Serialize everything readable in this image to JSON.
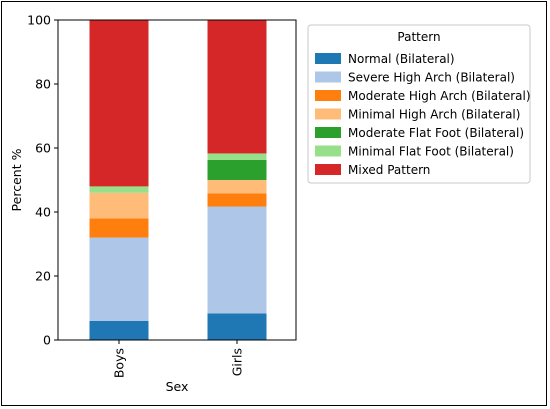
{
  "chart_data": {
    "type": "bar",
    "stacked": true,
    "categories": [
      "Boys",
      "Girls"
    ],
    "xlabel": "Sex",
    "ylabel": "Percent %",
    "ylim": [
      0,
      100
    ],
    "yticks": [
      0,
      20,
      40,
      60,
      80,
      100
    ],
    "grid": false,
    "legend": {
      "title": "Pattern",
      "placement": "upper right, outside plot"
    },
    "series": [
      {
        "name": "Normal (Bilateral)",
        "color": "#1f77b4",
        "values": [
          6,
          8.3
        ]
      },
      {
        "name": "Severe High Arch (Bilateral)",
        "color": "#aec7e8",
        "values": [
          26,
          33.4
        ]
      },
      {
        "name": "Moderate High Arch (Bilateral)",
        "color": "#ff7f0e",
        "values": [
          6,
          4.1
        ]
      },
      {
        "name": "Minimal High Arch (Bilateral)",
        "color": "#ffbb78",
        "values": [
          8,
          4.2
        ]
      },
      {
        "name": "Moderate Flat Foot (Bilateral)",
        "color": "#2ca02c",
        "values": [
          0,
          6.3
        ]
      },
      {
        "name": "Minimal Flat Foot (Bilateral)",
        "color": "#98df8a",
        "values": [
          2,
          2.0
        ]
      },
      {
        "name": "Mixed Pattern",
        "color": "#d62728",
        "values": [
          52,
          41.7
        ]
      }
    ]
  }
}
